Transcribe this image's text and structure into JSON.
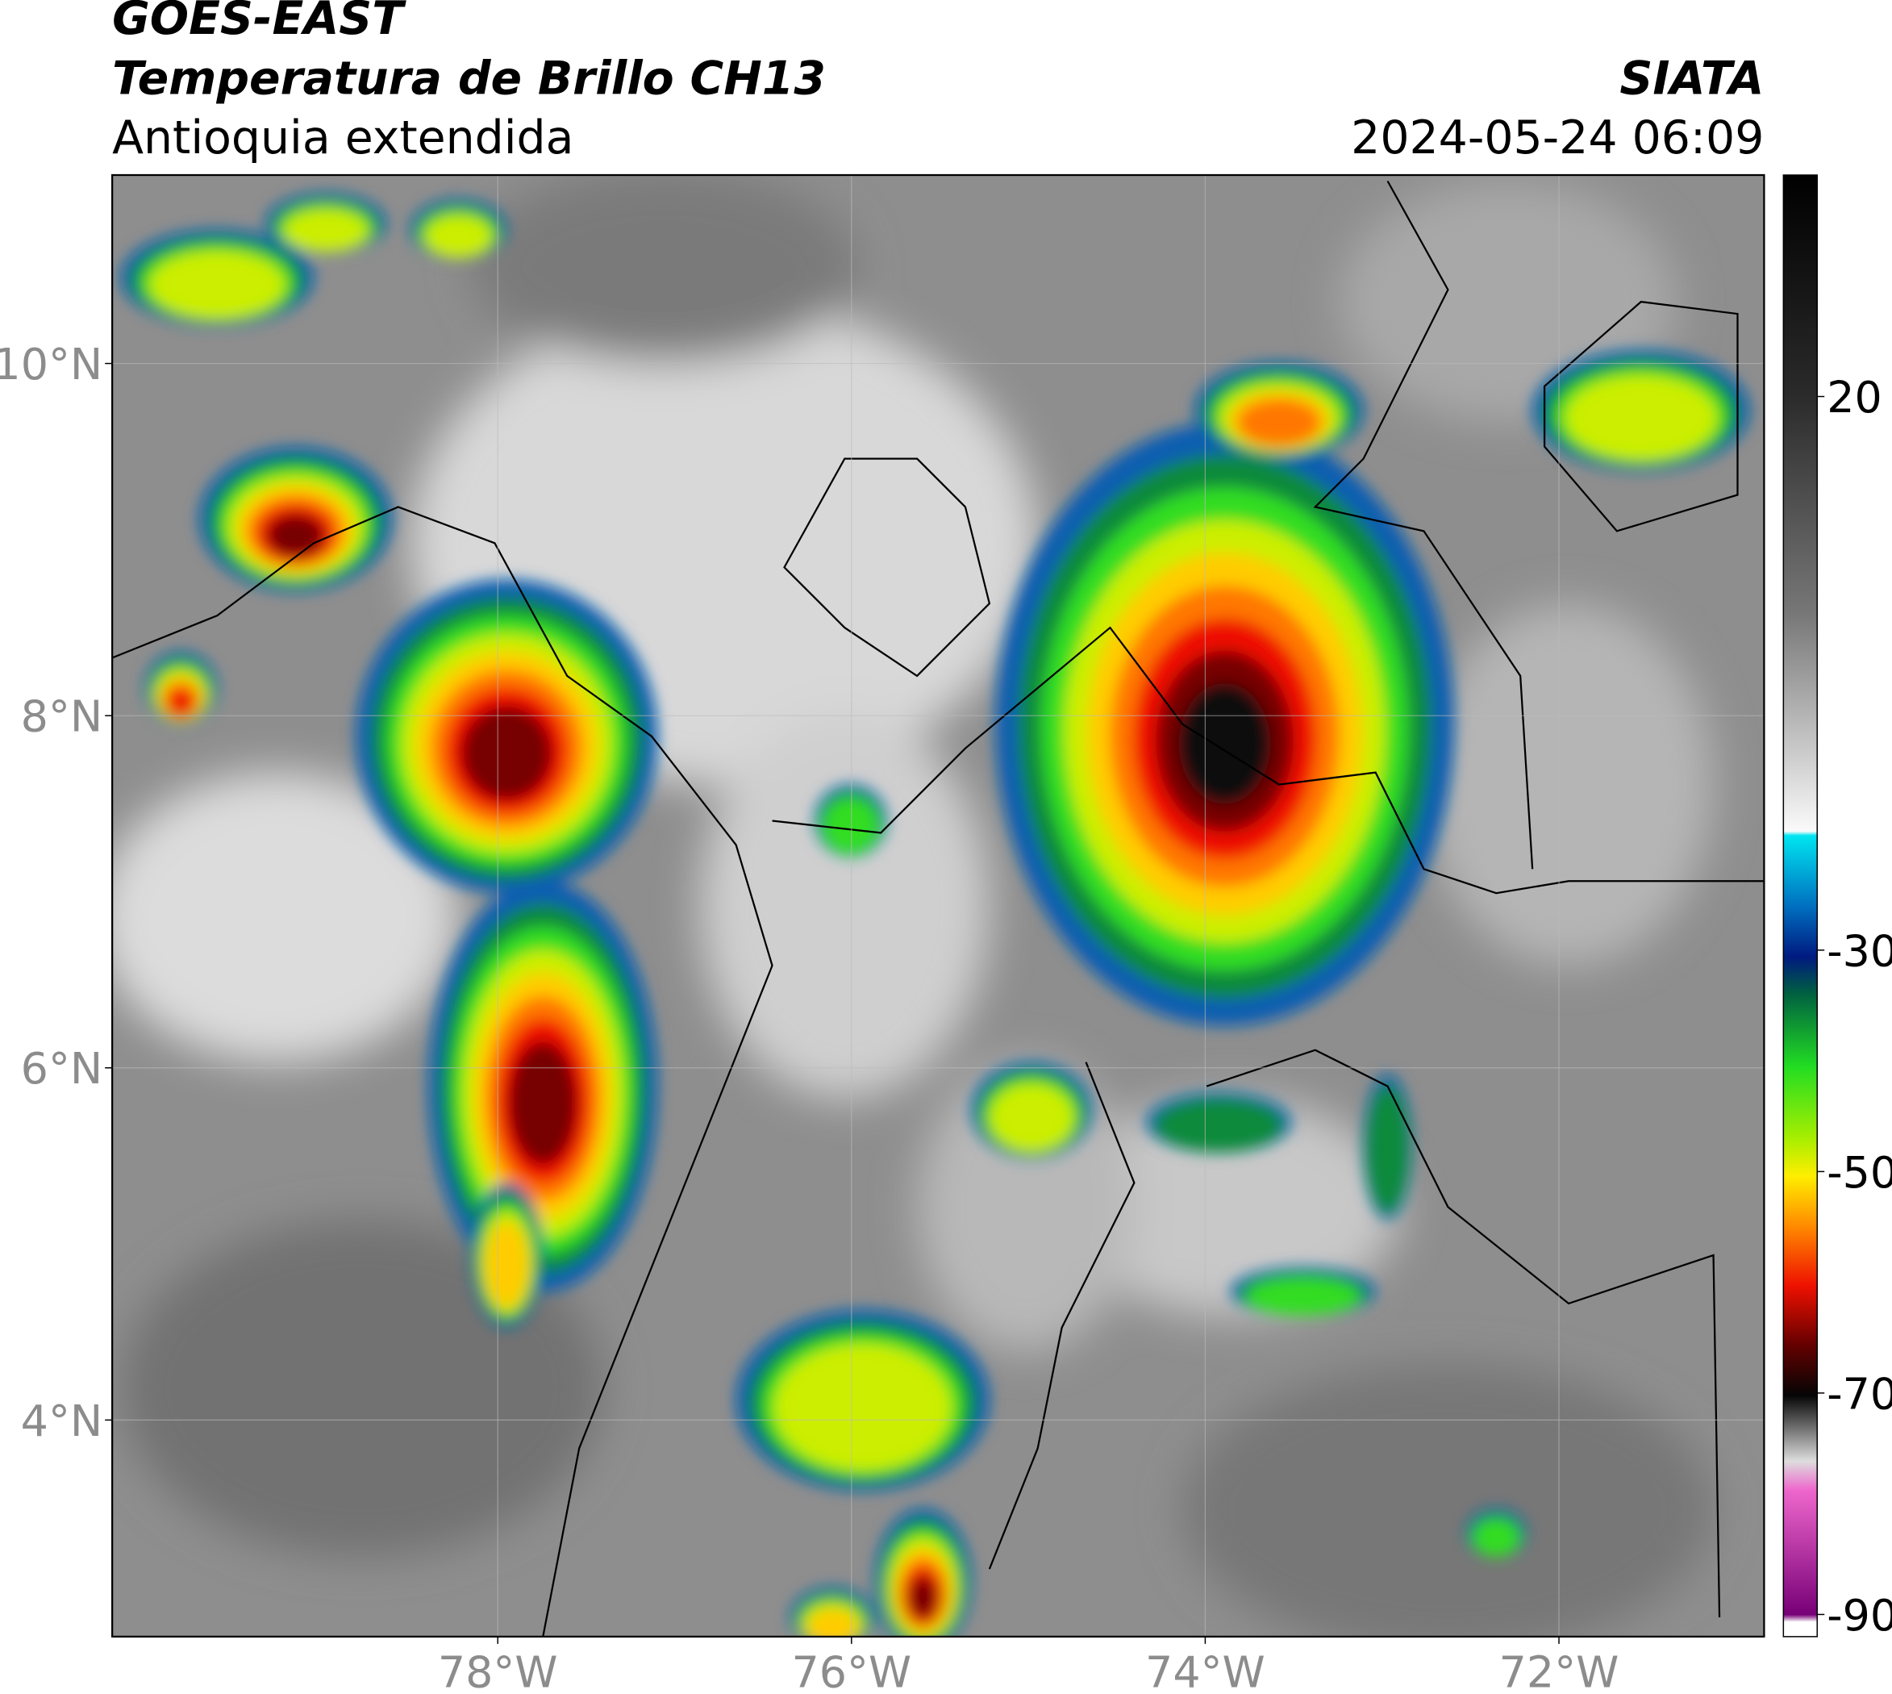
{
  "header": {
    "title": "GOES-EAST",
    "subtitle": "Temperatura de Brillo CH13",
    "region": "Antioquia extendida",
    "source": "SIATA",
    "datetime": "2024-05-24 06:09"
  },
  "map": {
    "lon_range": [
      -80.18,
      -70.84
    ],
    "lat_range": [
      2.77,
      11.07
    ],
    "xticks": [
      {
        "value": -78,
        "label": "78°W"
      },
      {
        "value": -76,
        "label": "76°W"
      },
      {
        "value": -74,
        "label": "74°W"
      },
      {
        "value": -72,
        "label": "72°W"
      }
    ],
    "yticks": [
      {
        "value": 10,
        "label": "10°N"
      },
      {
        "value": 8,
        "label": "8°N"
      },
      {
        "value": 6,
        "label": "6°N"
      },
      {
        "value": 4,
        "label": "4°N"
      }
    ],
    "grid": true
  },
  "colorbar": {
    "range": [
      -92,
      40
    ],
    "ticks": [
      20,
      -30,
      -50,
      -70,
      -90
    ]
  }
}
